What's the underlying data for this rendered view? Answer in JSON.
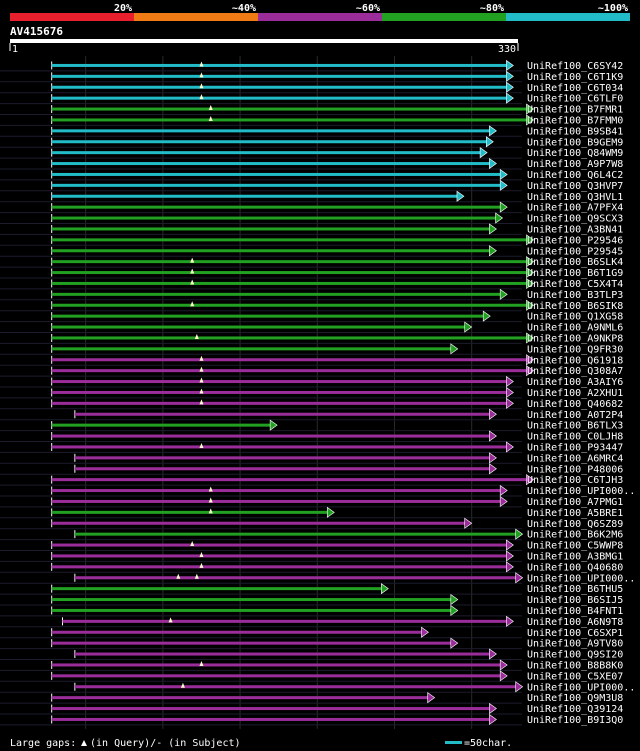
{
  "chart_data": {
    "type": "alignment",
    "title": "AV415676",
    "query_length": 330,
    "query_start_label": "1",
    "query_end_label": "330",
    "color_scale": [
      {
        "label": "20%",
        "color": "#e8202e"
      },
      {
        "label": "~40%",
        "color": "#f07b15"
      },
      {
        "label": "~60%",
        "color": "#9b2d9b"
      },
      {
        "label": "~80%",
        "color": "#22a022"
      },
      {
        "label": "~100%",
        "color": "#22bcc8"
      }
    ],
    "legend": {
      "gap_text": "Large gaps: ",
      "gap_desc": "(in Query)/- (in Subject)",
      "scale_text": "=50char."
    },
    "hits": [
      {
        "name": "UniRef100_C6SY42",
        "start": 28,
        "end": 327,
        "identity": 100,
        "gaps": [
          125
        ]
      },
      {
        "name": "UniRef100_C6T1K9",
        "start": 28,
        "end": 327,
        "identity": 100,
        "gaps": [
          125
        ]
      },
      {
        "name": "UniRef100_C6T034",
        "start": 28,
        "end": 327,
        "identity": 100,
        "gaps": [
          125
        ]
      },
      {
        "name": "UniRef100_C6TLF0",
        "start": 28,
        "end": 327,
        "identity": 100,
        "gaps": [
          125
        ]
      },
      {
        "name": "UniRef100_B7FMR1",
        "start": 28,
        "end": 340,
        "identity": 80,
        "gaps": [
          131
        ]
      },
      {
        "name": "UniRef100_B7FMM0",
        "start": 28,
        "end": 340,
        "identity": 80,
        "gaps": [
          131
        ]
      },
      {
        "name": "UniRef100_B9SB41",
        "start": 28,
        "end": 316,
        "identity": 100,
        "gaps": []
      },
      {
        "name": "UniRef100_B9GEM9",
        "start": 28,
        "end": 314,
        "identity": 100,
        "gaps": []
      },
      {
        "name": "UniRef100_Q84WM9",
        "start": 28,
        "end": 310,
        "identity": 100,
        "gaps": []
      },
      {
        "name": "UniRef100_A9P7W8",
        "start": 28,
        "end": 316,
        "identity": 100,
        "gaps": []
      },
      {
        "name": "UniRef100_Q6L4C2",
        "start": 28,
        "end": 323,
        "identity": 100,
        "gaps": []
      },
      {
        "name": "UniRef100_Q3HVP7",
        "start": 28,
        "end": 323,
        "identity": 100,
        "gaps": []
      },
      {
        "name": "UniRef100_Q3HVL1",
        "start": 28,
        "end": 295,
        "identity": 100,
        "gaps": []
      },
      {
        "name": "UniRef100_A7PFX4",
        "start": 28,
        "end": 323,
        "identity": 80,
        "gaps": []
      },
      {
        "name": "UniRef100_Q9SCX3",
        "start": 28,
        "end": 320,
        "identity": 80,
        "gaps": []
      },
      {
        "name": "UniRef100_A3BN41",
        "start": 28,
        "end": 316,
        "identity": 80,
        "gaps": []
      },
      {
        "name": "UniRef100_P29546",
        "start": 28,
        "end": 340,
        "identity": 80,
        "gaps": []
      },
      {
        "name": "UniRef100_P29545",
        "start": 28,
        "end": 316,
        "identity": 80,
        "gaps": []
      },
      {
        "name": "UniRef100_B6SLK4",
        "start": 28,
        "end": 340,
        "identity": 80,
        "gaps": [
          119
        ]
      },
      {
        "name": "UniRef100_B6T1G9",
        "start": 28,
        "end": 340,
        "identity": 80,
        "gaps": [
          119
        ]
      },
      {
        "name": "UniRef100_C5X4T4",
        "start": 28,
        "end": 340,
        "identity": 80,
        "gaps": [
          119
        ]
      },
      {
        "name": "UniRef100_B3TLP3",
        "start": 28,
        "end": 323,
        "identity": 80,
        "gaps": []
      },
      {
        "name": "UniRef100_B6SIK8",
        "start": 28,
        "end": 340,
        "identity": 80,
        "gaps": [
          119
        ]
      },
      {
        "name": "UniRef100_Q1XG58",
        "start": 28,
        "end": 312,
        "identity": 80,
        "gaps": []
      },
      {
        "name": "UniRef100_A9NML6",
        "start": 28,
        "end": 300,
        "identity": 80,
        "gaps": []
      },
      {
        "name": "UniRef100_A9NKP8",
        "start": 28,
        "end": 340,
        "identity": 80,
        "gaps": [
          122
        ]
      },
      {
        "name": "UniRef100_Q9FR30",
        "start": 28,
        "end": 291,
        "identity": 80,
        "gaps": []
      },
      {
        "name": "UniRef100_Q61918",
        "start": 28,
        "end": 340,
        "identity": 60,
        "gaps": [
          125
        ]
      },
      {
        "name": "UniRef100_Q308A7",
        "start": 28,
        "end": 340,
        "identity": 60,
        "gaps": [
          125
        ]
      },
      {
        "name": "UniRef100_A3AIY6",
        "start": 28,
        "end": 327,
        "identity": 60,
        "gaps": [
          125
        ]
      },
      {
        "name": "UniRef100_A2XHU1",
        "start": 28,
        "end": 327,
        "identity": 60,
        "gaps": [
          125
        ]
      },
      {
        "name": "UniRef100_Q40682",
        "start": 28,
        "end": 327,
        "identity": 60,
        "gaps": [
          125
        ]
      },
      {
        "name": "UniRef100_A0T2P4",
        "start": 43,
        "end": 316,
        "identity": 60,
        "gaps": []
      },
      {
        "name": "UniRef100_B6TLX3",
        "start": 28,
        "end": 174,
        "identity": 80,
        "gaps": []
      },
      {
        "name": "UniRef100_C0LJH8",
        "start": 28,
        "end": 316,
        "identity": 60,
        "gaps": []
      },
      {
        "name": "UniRef100_P93447",
        "start": 28,
        "end": 327,
        "identity": 60,
        "gaps": [
          125
        ]
      },
      {
        "name": "UniRef100_A6MRC4",
        "start": 43,
        "end": 316,
        "identity": 60,
        "gaps": []
      },
      {
        "name": "UniRef100_P48006",
        "start": 43,
        "end": 316,
        "identity": 60,
        "gaps": []
      },
      {
        "name": "UniRef100_C6TJH3",
        "start": 28,
        "end": 340,
        "identity": 60,
        "gaps": []
      },
      {
        "name": "UniRef100_UPI000..",
        "start": 28,
        "end": 323,
        "identity": 60,
        "gaps": [
          131
        ]
      },
      {
        "name": "UniRef100_A7PMG1",
        "start": 28,
        "end": 323,
        "identity": 60,
        "gaps": [
          131
        ]
      },
      {
        "name": "UniRef100_A5BRE1",
        "start": 28,
        "end": 211,
        "identity": 80,
        "gaps": [
          131
        ]
      },
      {
        "name": "UniRef100_Q6SZ89",
        "start": 28,
        "end": 300,
        "identity": 60,
        "gaps": []
      },
      {
        "name": "UniRef100_B6K2M6",
        "start": 43,
        "end": 333,
        "identity": 80,
        "gaps": []
      },
      {
        "name": "UniRef100_C5WWP8",
        "start": 28,
        "end": 327,
        "identity": 60,
        "gaps": [
          119
        ]
      },
      {
        "name": "UniRef100_A3BMG1",
        "start": 28,
        "end": 327,
        "identity": 60,
        "gaps": [
          125
        ]
      },
      {
        "name": "UniRef100_Q40680",
        "start": 28,
        "end": 327,
        "identity": 60,
        "gaps": [
          125
        ]
      },
      {
        "name": "UniRef100_UPI000..",
        "start": 43,
        "end": 333,
        "identity": 60,
        "gaps": [
          110,
          122
        ]
      },
      {
        "name": "UniRef100_B6THU5",
        "start": 28,
        "end": 246,
        "identity": 80,
        "gaps": []
      },
      {
        "name": "UniRef100_B6SIJ5",
        "start": 28,
        "end": 291,
        "identity": 80,
        "gaps": []
      },
      {
        "name": "UniRef100_B4FNT1",
        "start": 28,
        "end": 291,
        "identity": 80,
        "gaps": []
      },
      {
        "name": "UniRef100_A6N9T8",
        "start": 35,
        "end": 327,
        "identity": 60,
        "gaps": [
          105
        ]
      },
      {
        "name": "UniRef100_C6SXP1",
        "start": 28,
        "end": 272,
        "identity": 60,
        "gaps": []
      },
      {
        "name": "UniRef100_A9TV80",
        "start": 28,
        "end": 291,
        "identity": 60,
        "gaps": []
      },
      {
        "name": "UniRef100_Q9SI20",
        "start": 43,
        "end": 316,
        "identity": 60,
        "gaps": []
      },
      {
        "name": "UniRef100_B8B8K0",
        "start": 28,
        "end": 323,
        "identity": 60,
        "gaps": [
          125
        ]
      },
      {
        "name": "UniRef100_C5XE07",
        "start": 28,
        "end": 323,
        "identity": 60,
        "gaps": []
      },
      {
        "name": "UniRef100_UPI000..",
        "start": 43,
        "end": 333,
        "identity": 60,
        "gaps": [
          113
        ]
      },
      {
        "name": "UniRef100_Q9M3U8",
        "start": 28,
        "end": 276,
        "identity": 60,
        "gaps": []
      },
      {
        "name": "UniRef100_Q39124",
        "start": 28,
        "end": 316,
        "identity": 60,
        "gaps": []
      },
      {
        "name": "UniRef100_B9I3Q0",
        "start": 28,
        "end": 316,
        "identity": 60,
        "gaps": []
      }
    ]
  }
}
